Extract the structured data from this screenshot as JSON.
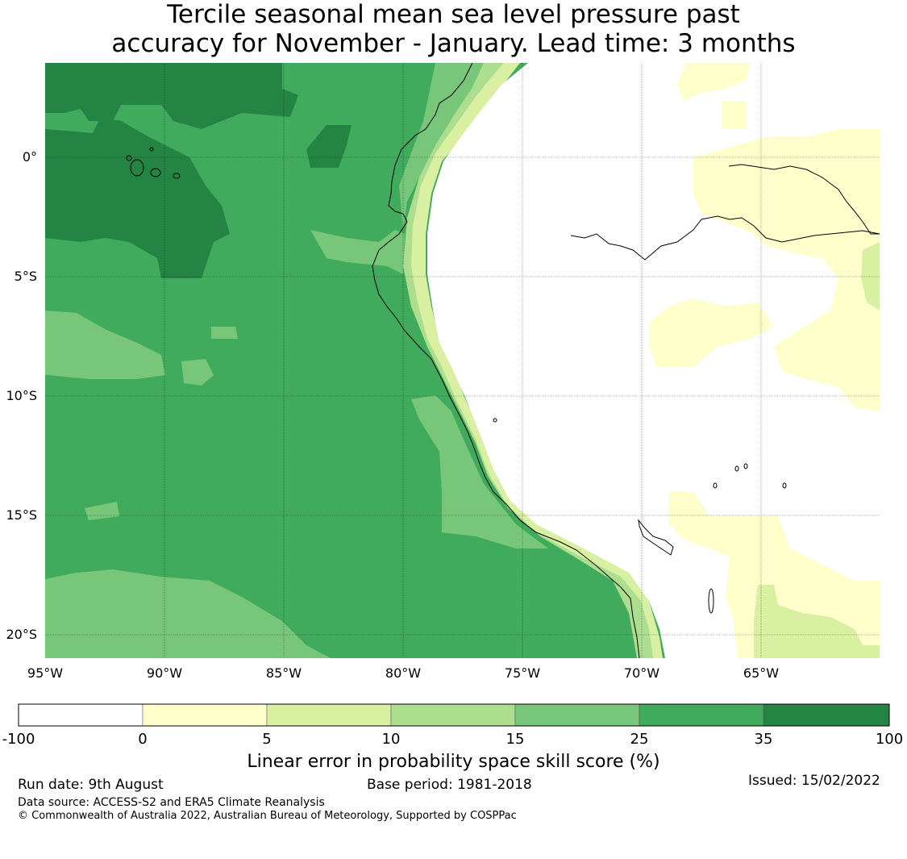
{
  "title": {
    "line1": "Tercile seasonal mean sea level pressure past",
    "line2": "accuracy for November - January. Lead time: 3 months"
  },
  "map": {
    "x_ticks": [
      "95°W",
      "90°W",
      "85°W",
      "80°W",
      "75°W",
      "70°W",
      "65°W"
    ],
    "y_ticks": [
      "0°",
      "5°S",
      "10°S",
      "15°S",
      "20°S"
    ]
  },
  "colorbar": {
    "boundaries": [
      "-100",
      "0",
      "5",
      "10",
      "15",
      "25",
      "35",
      "100"
    ],
    "colors": [
      "#ffffff",
      "#ffffcc",
      "#d9f0a3",
      "#addd8e",
      "#78c679",
      "#41ab5d",
      "#238443"
    ],
    "title": "Linear error in probability space skill score (%)"
  },
  "footer": {
    "run_date": "Run date: 9th August",
    "base_period": "Base period: 1981-2018",
    "issued": "Issued: 15/02/2022",
    "data_source": "Data source: ACCESS-S2 and ERA5 Climate Reanalysis",
    "copyright": "© Commonwealth of Australia 2022, Australian Bureau of Meteorology, Supported by COSPPac"
  }
}
